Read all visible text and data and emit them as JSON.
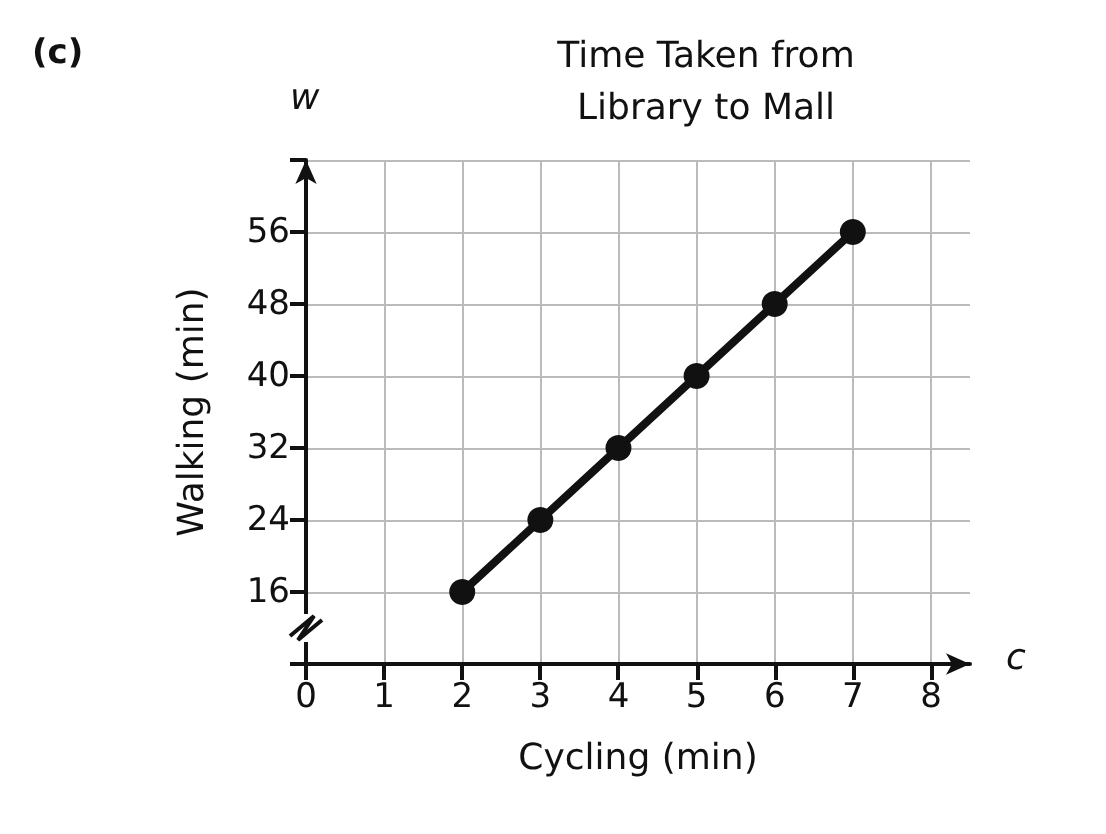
{
  "chart_data": {
    "type": "line",
    "title": "Time Taken from\nLibrary to Mall",
    "xlabel": "Cycling (min)",
    "ylabel": "Walking (min)",
    "annotations": [
      "(c)",
      "w",
      "c"
    ],
    "x": [
      2,
      3,
      4,
      5,
      6,
      7
    ],
    "series": [
      {
        "color": "#111111",
        "values": [
          16,
          24,
          32,
          40,
          48,
          56
        ]
      }
    ],
    "xlim": [
      0,
      8.5
    ],
    "xticks": [
      {
        "value": 0,
        "label": "0"
      },
      1,
      2,
      3,
      4,
      5,
      6,
      7,
      8
    ],
    "ylim": [
      8,
      64
    ],
    "yticks": [
      {
        "value": 8,
        "label": null
      },
      16,
      24,
      32,
      40,
      48,
      56,
      {
        "value": 64,
        "label": null
      }
    ],
    "grid": true,
    "marker": "circle",
    "line_style": "solid"
  }
}
